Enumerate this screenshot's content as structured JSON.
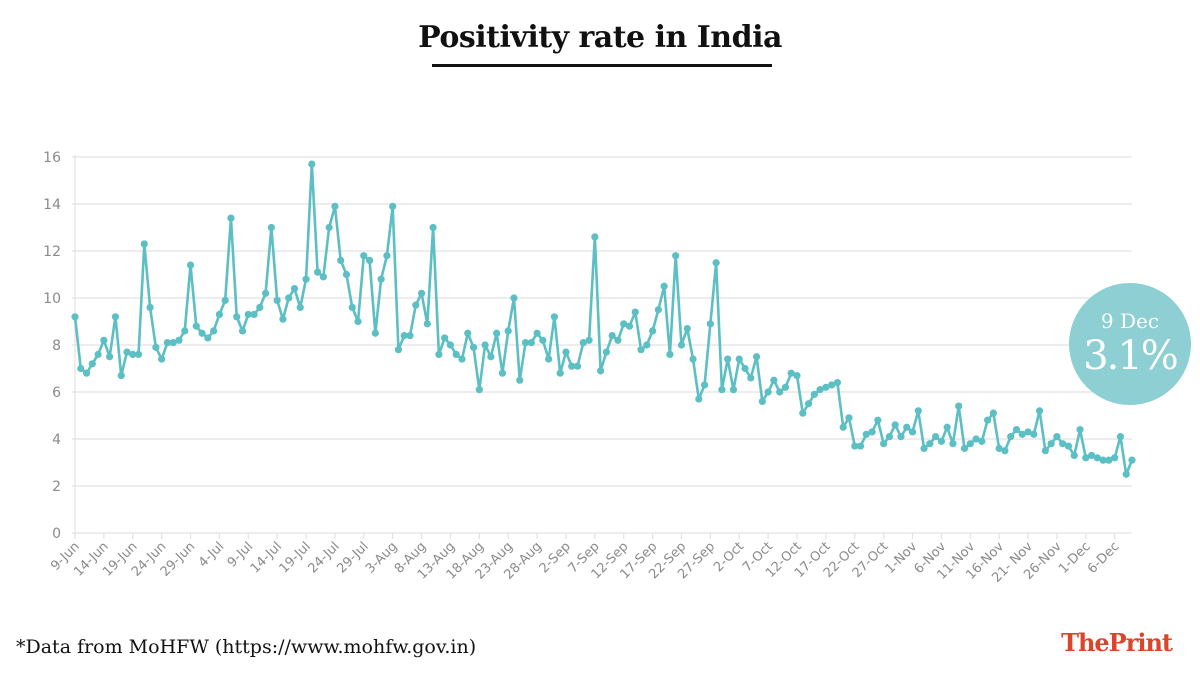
{
  "title": "Positivity rate in India",
  "footnote": "*Data from MoHFW (https://www.mohfw.gov.in)",
  "brand": "ThePrint",
  "badge": {
    "date": "9 Dec",
    "value": "3.1%"
  },
  "colors": {
    "line": "#5bbfc3",
    "badge": "#8dcfd3",
    "grid": "#e2e2e2",
    "brand": "#d9462a"
  },
  "chart_data": {
    "type": "line",
    "title": "Positivity rate in India",
    "xlabel": "",
    "ylabel": "",
    "ylim": [
      0,
      16
    ],
    "yticks": [
      0,
      2,
      4,
      6,
      8,
      10,
      12,
      14,
      16
    ],
    "grid": true,
    "x_tick_labels": [
      "9-Jun",
      "14-Jun",
      "19-Jun",
      "24-Jun",
      "29-Jun",
      "4-Jul",
      "9-Jul",
      "14-Jul",
      "19-Jul",
      "24-Jul",
      "29-Jul",
      "3-Aug",
      "8-Aug",
      "13-Aug",
      "18-Aug",
      "23-Aug",
      "28-Aug",
      "2-Sep",
      "7-Sep",
      "12-Sep",
      "17-Sep",
      "22-Sep",
      "27-Sep",
      "2-Oct",
      "7-Oct",
      "12-Oct",
      "17-Oct",
      "22-Oct",
      "27-Oct",
      "1-Nov",
      "6-Nov",
      "11-Nov",
      "16-Nov",
      "21- Nov",
      "26-Nov",
      "1-Dec",
      "6-Dec"
    ],
    "x_start": "9-Jun",
    "x_end": "9-Dec",
    "series": [
      {
        "name": "Positivity rate (%)",
        "values": [
          9.2,
          7.0,
          6.8,
          7.2,
          7.6,
          8.2,
          7.5,
          9.2,
          6.7,
          7.7,
          7.6,
          7.6,
          12.3,
          9.6,
          7.9,
          7.4,
          8.1,
          8.1,
          8.2,
          8.6,
          11.4,
          8.8,
          8.5,
          8.3,
          8.6,
          9.3,
          9.9,
          13.4,
          9.2,
          8.6,
          9.3,
          9.3,
          9.6,
          10.2,
          13.0,
          9.9,
          9.1,
          10.0,
          10.4,
          9.6,
          10.8,
          15.7,
          11.1,
          10.9,
          13.0,
          13.9,
          11.6,
          11.0,
          9.6,
          9.0,
          11.8,
          11.6,
          8.5,
          10.8,
          11.8,
          13.9,
          7.8,
          8.4,
          8.4,
          9.7,
          10.2,
          8.9,
          13.0,
          7.6,
          8.3,
          8.0,
          7.6,
          7.4,
          8.5,
          7.9,
          6.1,
          8.0,
          7.5,
          8.5,
          6.8,
          8.6,
          10.0,
          6.5,
          8.1,
          8.1,
          8.5,
          8.2,
          7.4,
          9.2,
          6.8,
          7.7,
          7.1,
          7.1,
          8.1,
          8.2,
          12.6,
          6.9,
          7.7,
          8.4,
          8.2,
          8.9,
          8.8,
          9.4,
          7.8,
          8.0,
          8.6,
          9.5,
          10.5,
          7.6,
          11.8,
          8.0,
          8.7,
          7.4,
          5.7,
          6.3,
          8.9,
          11.5,
          6.1,
          7.4,
          6.1,
          7.4,
          7.0,
          6.6,
          7.5,
          5.6,
          6.0,
          6.5,
          6.0,
          6.2,
          6.8,
          6.7,
          5.1,
          5.5,
          5.9,
          6.1,
          6.2,
          6.3,
          6.4,
          4.5,
          4.9,
          3.7,
          3.7,
          4.2,
          4.3,
          4.8,
          3.8,
          4.1,
          4.6,
          4.1,
          4.5,
          4.3,
          5.2,
          3.6,
          3.8,
          4.1,
          3.9,
          4.5,
          3.8,
          5.4,
          3.6,
          3.8,
          4.0,
          3.9,
          4.8,
          5.1,
          3.6,
          3.5,
          4.1,
          4.4,
          4.2,
          4.3,
          4.2,
          5.2,
          3.5,
          3.8,
          4.1,
          3.8,
          3.7,
          3.3,
          4.4,
          3.2,
          3.3,
          3.2,
          3.1,
          3.1,
          3.2,
          4.1,
          2.5,
          3.1
        ]
      }
    ]
  }
}
